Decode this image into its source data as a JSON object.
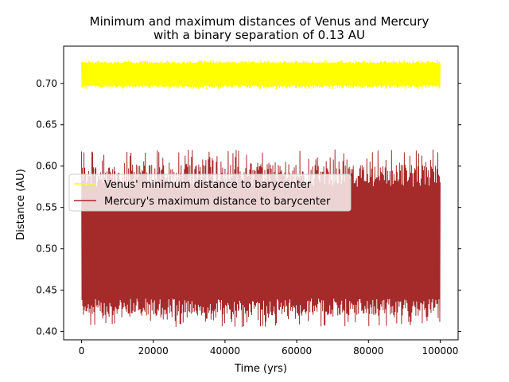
{
  "chart_data": {
    "type": "line",
    "title": [
      "Minimum and maximum distances of Venus and Mercury",
      "with a binary separation of 0.13 AU"
    ],
    "xlabel": "Time (yrs)",
    "ylabel": "Distance (AU)",
    "xlim": [
      -5000,
      105000
    ],
    "ylim": [
      0.39,
      0.745
    ],
    "xticks": [
      0,
      20000,
      40000,
      60000,
      80000,
      100000
    ],
    "yticks": [
      0.4,
      0.45,
      0.5,
      0.55,
      0.6,
      0.65,
      0.7
    ],
    "xtick_labels": [
      "0",
      "20000",
      "40000",
      "60000",
      "80000",
      "100000"
    ],
    "ytick_labels": [
      "0.40",
      "0.45",
      "0.50",
      "0.55",
      "0.60",
      "0.65",
      "0.70"
    ],
    "legend_position": "center-left",
    "series": [
      {
        "name": "Venus' minimum distance to barycenter",
        "color": "#ffff00",
        "x_range": [
          0,
          100000
        ],
        "band_low": 0.693,
        "band_high": 0.728,
        "core_low": 0.698,
        "core_high": 0.724
      },
      {
        "name": "Mercury's maximum distance to barycenter",
        "color": "#a52a2a",
        "x_range": [
          0,
          100000
        ],
        "band_low": 0.405,
        "band_high": 0.62,
        "core_low": 0.44,
        "core_high": 0.575
      }
    ]
  }
}
